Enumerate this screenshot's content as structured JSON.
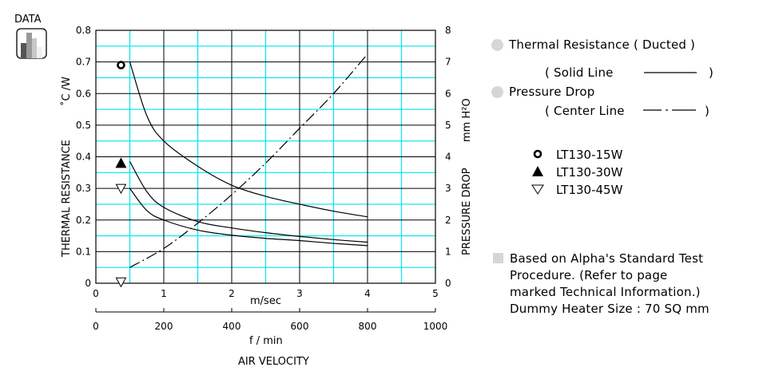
{
  "badge": {
    "label": "DATA",
    "icon": "bar-chart-icon"
  },
  "legend": {
    "thermal_title": "Thermal Resistance ( Ducted )",
    "solid_open": "( Solid Line",
    "solid_close": ")",
    "pressure_title": "Pressure Drop",
    "center_open": "( Center Line",
    "center_close": ")",
    "bullet_color": "#d6d6d6"
  },
  "notes": {
    "lines": [
      "Based on Alpha's Standard Test",
      "Procedure.  (Refer to page",
      "marked Technical Information.)",
      "Dummy Heater Size :   70 SQ mm"
    ]
  },
  "chart_data": {
    "type": "line",
    "title": "",
    "xlabel": "m/sec",
    "xlabel2": "f / min",
    "xtitle": "AIR VELOCITY",
    "ylabel": "THERMAL   RESISTANCE",
    "ylabel_unit": "˚C /W",
    "y2label": "PRESSURE  DROP",
    "y2label_unit": "mm H²O",
    "xlim": [
      0,
      5
    ],
    "x2lim": [
      0,
      1000
    ],
    "ylim": [
      0,
      0.8
    ],
    "y2lim": [
      0,
      8
    ],
    "grid": true,
    "grid_color": "#00e5ee",
    "x_ticks": [
      "0",
      "1",
      "2",
      "3",
      "4",
      "5"
    ],
    "x2_ticks": [
      "0",
      "200",
      "400",
      "600",
      "800",
      "1000"
    ],
    "y_ticks": [
      "0",
      "0.1",
      "0.2",
      "0.3",
      "0.4",
      "0.5",
      "0.6",
      "0.7",
      "0.8"
    ],
    "y2_ticks": [
      "0",
      "1",
      "2",
      "3",
      "4",
      "5",
      "6",
      "7",
      "8"
    ],
    "series": [
      {
        "name": "LT130-15W",
        "marker": "open-circle",
        "axis": "left",
        "style": "solid",
        "x": [
          0.5,
          0.75,
          1.0,
          1.5,
          2.0,
          2.5,
          3.0,
          3.5,
          4.0
        ],
        "y": [
          0.7,
          0.53,
          0.45,
          0.37,
          0.31,
          0.275,
          0.25,
          0.228,
          0.21
        ]
      },
      {
        "name": "LT130-30W",
        "marker": "filled-triangle",
        "axis": "left",
        "style": "solid",
        "x": [
          0.5,
          0.75,
          1.0,
          1.5,
          2.0,
          2.5,
          3.0,
          3.5,
          4.0
        ],
        "y": [
          0.385,
          0.29,
          0.24,
          0.195,
          0.175,
          0.16,
          0.148,
          0.138,
          0.13
        ]
      },
      {
        "name": "LT130-45W",
        "marker": "open-triangle-down",
        "axis": "left",
        "style": "solid",
        "x": [
          0.5,
          0.75,
          1.0,
          1.5,
          2.0,
          2.5,
          3.0,
          3.5,
          4.0
        ],
        "y": [
          0.3,
          0.23,
          0.2,
          0.168,
          0.152,
          0.142,
          0.135,
          0.126,
          0.119
        ]
      },
      {
        "name": "Pressure Drop",
        "marker": "open-triangle-down",
        "axis": "right",
        "style": "center-line",
        "x": [
          0.5,
          1.0,
          1.5,
          2.0,
          2.5,
          3.0,
          3.5,
          4.0
        ],
        "y": [
          0.5,
          1.1,
          1.9,
          2.8,
          3.8,
          4.9,
          6.0,
          7.25
        ]
      }
    ],
    "start_markers": [
      {
        "series": "LT130-15W",
        "marker": "open-circle",
        "x": 0.37,
        "y": 0.69
      },
      {
        "series": "LT130-30W",
        "marker": "filled-triangle",
        "x": 0.37,
        "y": 0.38
      },
      {
        "series": "LT130-45W",
        "marker": "open-triangle-down",
        "x": 0.37,
        "y": 0.3
      },
      {
        "series": "Pressure Drop",
        "marker": "open-triangle-down",
        "x": 0.37,
        "y": 0.045
      }
    ]
  }
}
